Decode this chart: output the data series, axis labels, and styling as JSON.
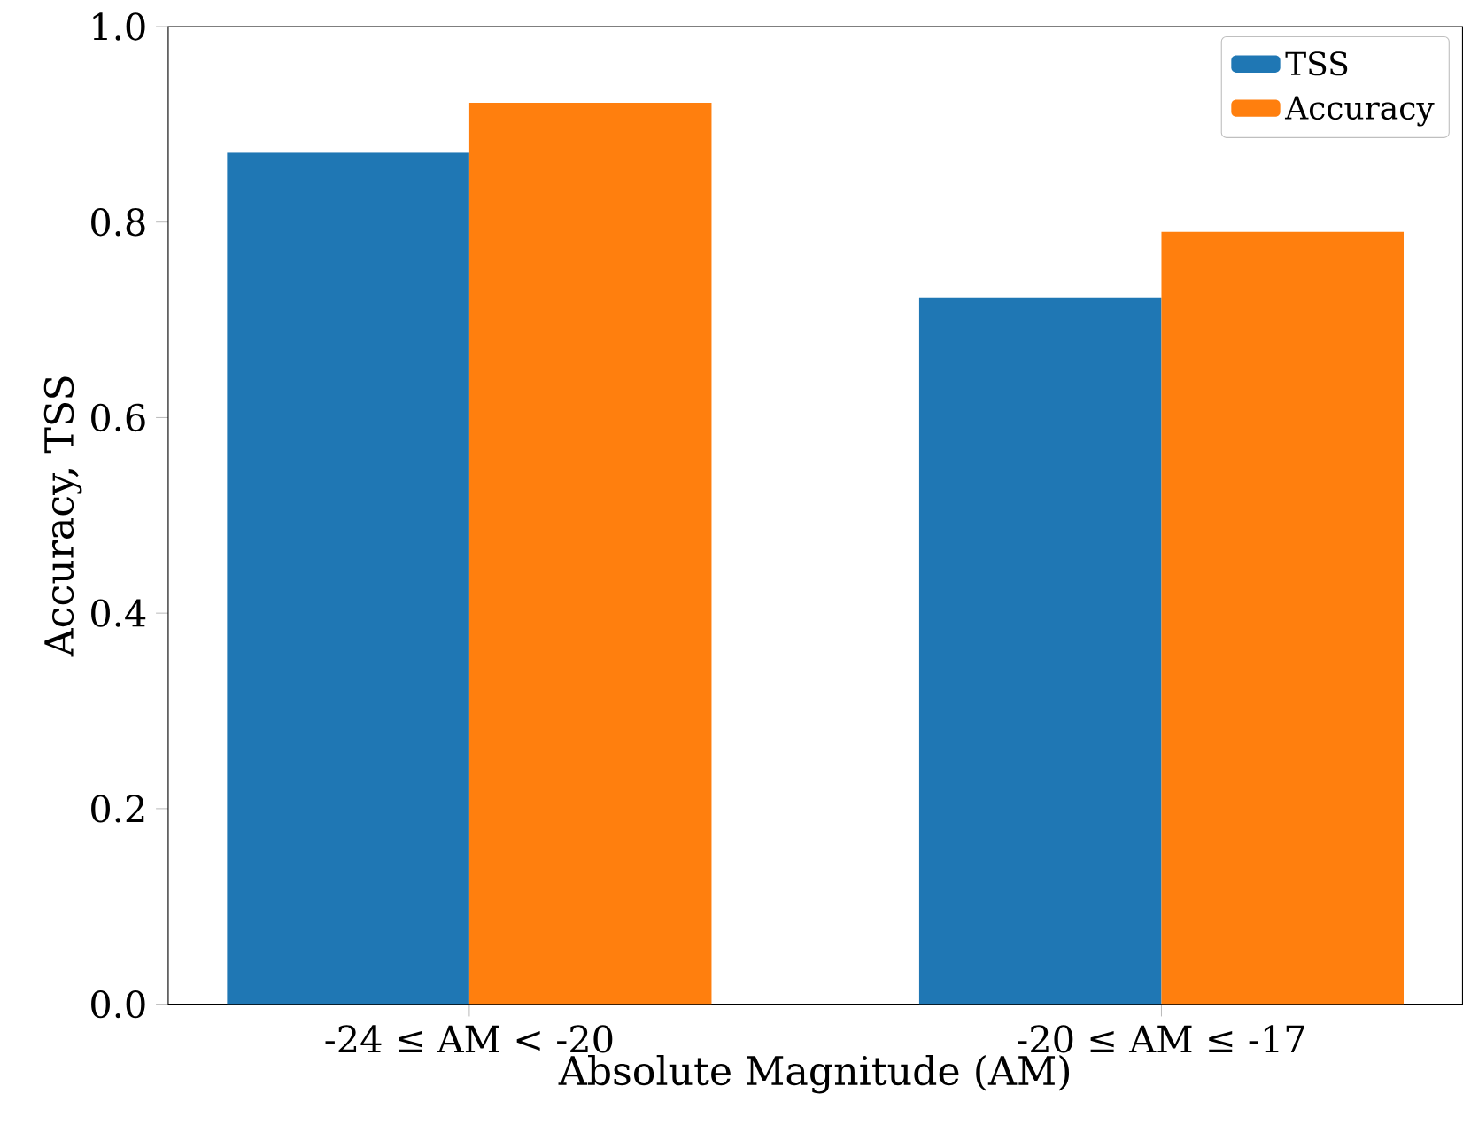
{
  "chart_data": {
    "type": "bar",
    "xlabel": "Absolute Magnitude (AM)",
    "ylabel": "Accuracy, TSS",
    "categories": [
      "-24  ≤  AM < -20",
      "-20  ≤  AM  ≤  -17"
    ],
    "series": [
      {
        "name": "TSS",
        "color": "#1f77b4",
        "values": [
          0.871,
          0.723
        ]
      },
      {
        "name": "Accuracy",
        "color": "#ff7f0e",
        "values": [
          0.922,
          0.79
        ]
      }
    ],
    "ylim": [
      0,
      1
    ],
    "yticks": [
      {
        "value": 0,
        "label": "0.0"
      },
      {
        "value": 0.2,
        "label": "0.2"
      },
      {
        "value": 0.4,
        "label": "0.4"
      },
      {
        "value": 0.6,
        "label": "0.6"
      },
      {
        "value": 0.8,
        "label": "0.8"
      },
      {
        "value": 1,
        "label": "1.0"
      }
    ],
    "grid": false,
    "legend": "top right"
  }
}
